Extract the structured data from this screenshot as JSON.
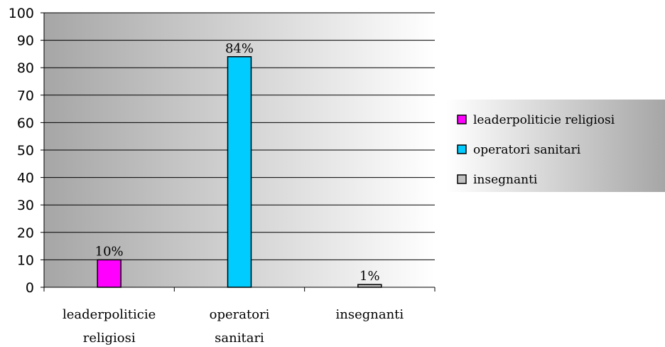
{
  "chart_data": {
    "type": "bar",
    "categories": [
      "leaderpoliticie religiosi",
      "operatori sanitari",
      "insegnanti"
    ],
    "category_label_lines": [
      [
        "leaderpoliticie",
        "religiosi"
      ],
      [
        "operatori",
        "sanitari"
      ],
      [
        "insegnanti"
      ]
    ],
    "values": [
      10,
      84,
      1
    ],
    "data_labels": [
      "10%",
      "84%",
      "1%"
    ],
    "colors": [
      "#ff00ff",
      "#00ccff",
      "#c0c0c0"
    ],
    "ylim": [
      0,
      100
    ],
    "yticks": [
      0,
      10,
      20,
      30,
      40,
      50,
      60,
      70,
      80,
      90,
      100
    ],
    "grid": true,
    "legend": {
      "position": "right",
      "entries": [
        "leaderpoliticie religiosi",
        "operatori sanitari",
        "insegnanti"
      ]
    },
    "title": "",
    "xlabel": "",
    "ylabel": ""
  }
}
